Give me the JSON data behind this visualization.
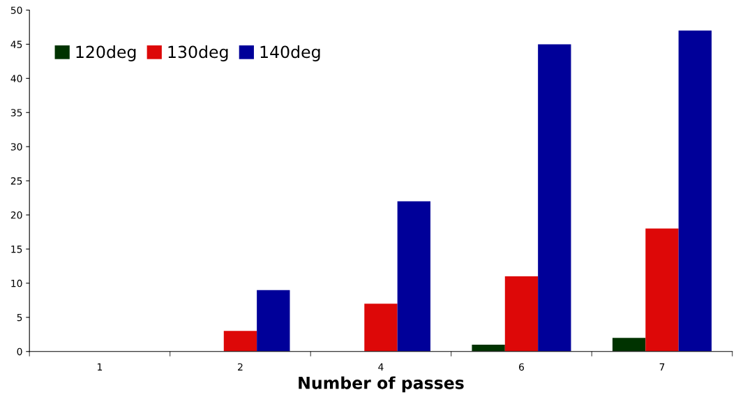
{
  "chart_data": {
    "type": "bar",
    "xlabel": "Number of passes",
    "categories": [
      "1",
      "2",
      "4",
      "6",
      "7"
    ],
    "series": [
      {
        "name": "120deg",
        "color": "#003300",
        "values": [
          0,
          0,
          0,
          1,
          2
        ]
      },
      {
        "name": "130deg",
        "color": "#dd0808",
        "values": [
          0,
          3,
          7,
          11,
          18
        ]
      },
      {
        "name": "140deg",
        "color": "#000099",
        "values": [
          0,
          9,
          22,
          45,
          47
        ]
      }
    ],
    "ylim": [
      0,
      50
    ],
    "yticks": [
      0,
      5,
      10,
      15,
      20,
      25,
      30,
      35,
      40,
      45,
      50
    ],
    "grid": false,
    "legend": "top left"
  }
}
